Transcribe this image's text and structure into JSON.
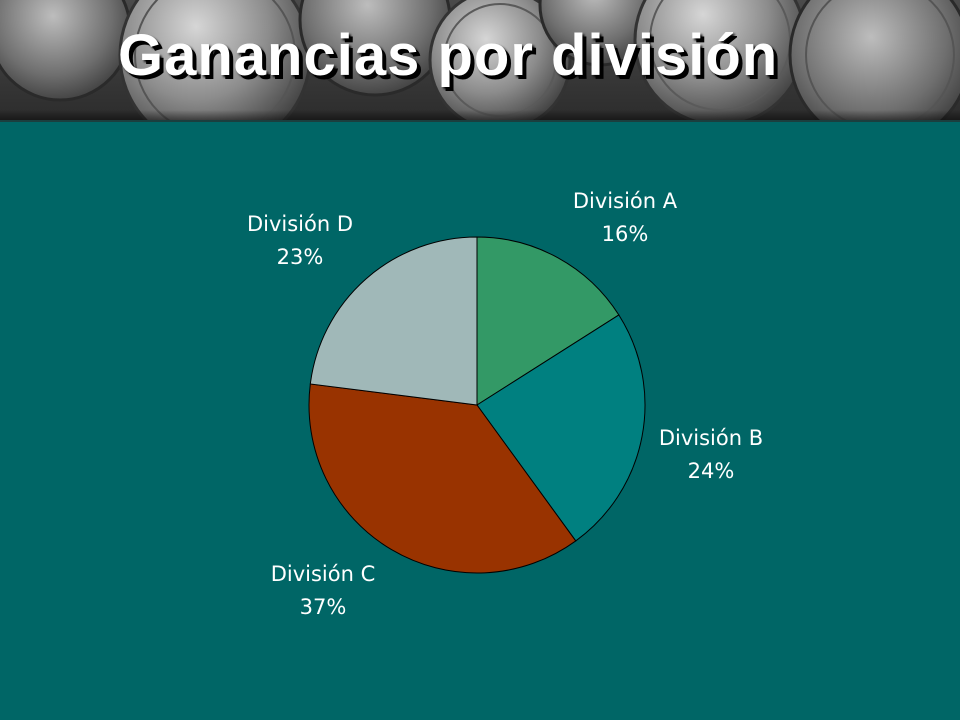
{
  "slide": {
    "title": "Ganancias por división",
    "background_color": "#006666",
    "header_image": "coins-photo-banner"
  },
  "chart_data": {
    "type": "pie",
    "title": "",
    "start_angle": "12 o'clock",
    "direction": "clockwise",
    "slices": [
      {
        "label": "División A",
        "value": 16,
        "display": "16%",
        "color": "#339966"
      },
      {
        "label": "División B",
        "value": 24,
        "display": "24%",
        "color": "#008080"
      },
      {
        "label": "División C",
        "value": 37,
        "display": "37%",
        "color": "#993300"
      },
      {
        "label": "División D",
        "value": 23,
        "display": "23%",
        "color": "#a0b8b8"
      }
    ],
    "legend": "none",
    "data_labels": "outside, category name and percentage"
  }
}
